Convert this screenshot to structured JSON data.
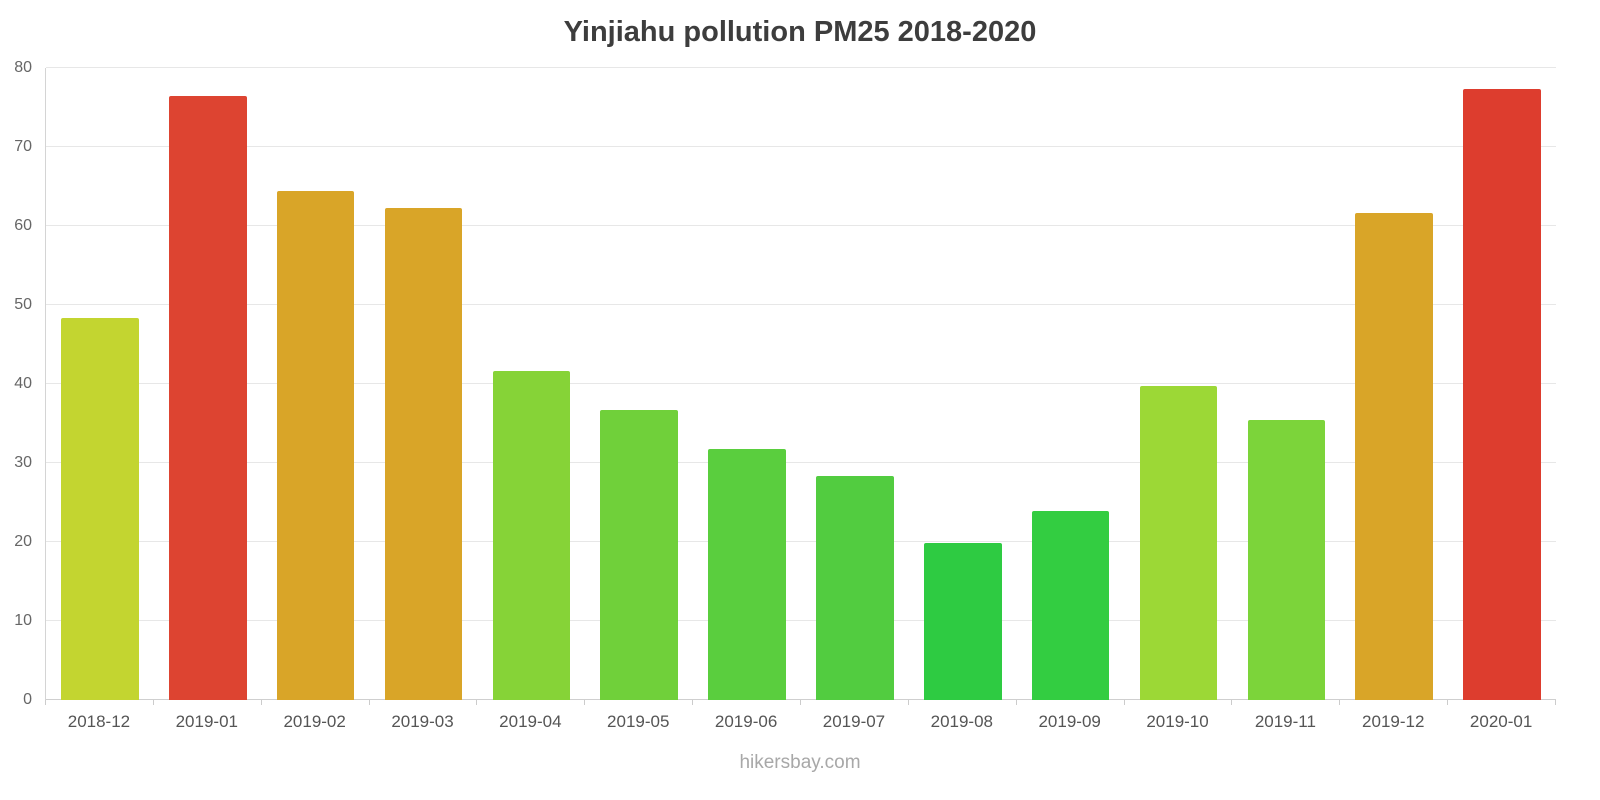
{
  "title": "Yinjiahu pollution PM25 2018-2020",
  "footer": "hikersbay.com",
  "chart_data": {
    "type": "bar",
    "title": "Yinjiahu pollution PM25 2018-2020",
    "categories": [
      "2018-12",
      "2019-01",
      "2019-02",
      "2019-03",
      "2019-04",
      "2019-05",
      "2019-06",
      "2019-07",
      "2019-08",
      "2019-09",
      "2019-10",
      "2019-11",
      "2019-12",
      "2020-01"
    ],
    "values": [
      48.4,
      76.4,
      64.4,
      62.3,
      41.6,
      36.7,
      31.8,
      28.4,
      19.9,
      23.9,
      39.7,
      35.4,
      61.6,
      77.3
    ],
    "bar_colors": [
      "#c3d530",
      "#dd4431",
      "#d9a528",
      "#d9a528",
      "#86d337",
      "#70d03a",
      "#5ace3e",
      "#52cc40",
      "#2ecb42",
      "#33cd41",
      "#9cd836",
      "#7cd43a",
      "#d9a528",
      "#dd3d2e"
    ],
    "xlabel": "",
    "ylabel": "",
    "ylim": [
      0,
      80
    ],
    "yticks": [
      0,
      10,
      20,
      30,
      40,
      50,
      60,
      70,
      80
    ],
    "grid": true,
    "legend": false,
    "source_label": "hikersbay.com"
  }
}
